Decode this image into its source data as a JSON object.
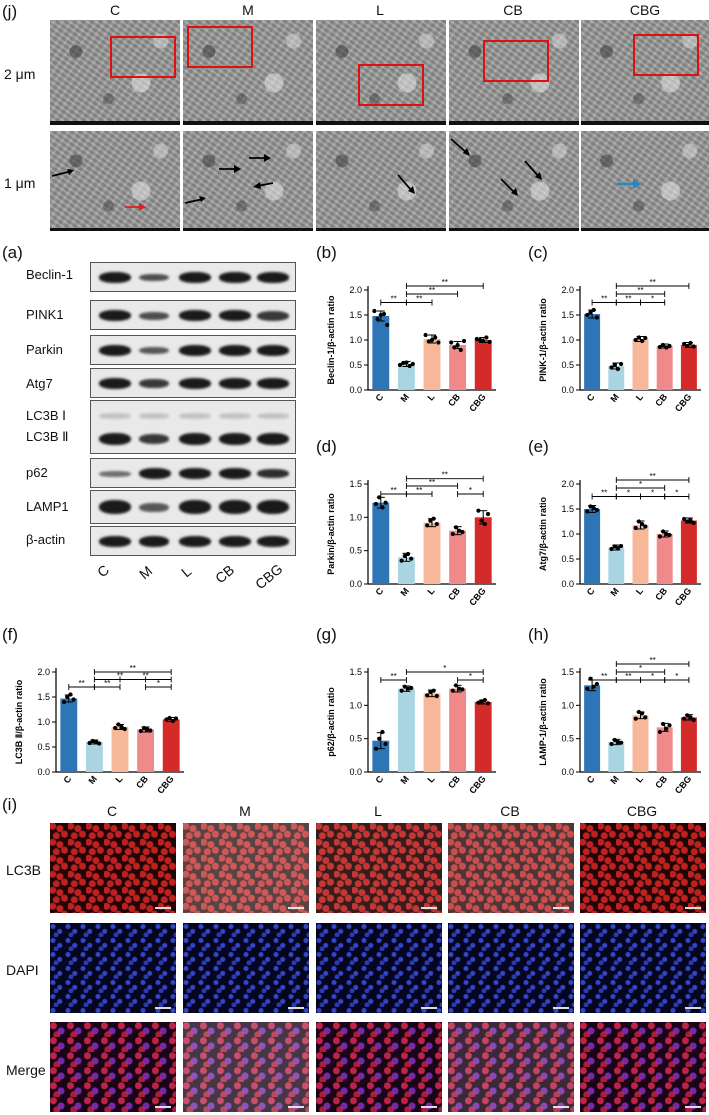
{
  "panels": {
    "j": "(j)",
    "a": "(a)",
    "b": "(b)",
    "c": "(c)",
    "d": "(d)",
    "e": "(e)",
    "f": "(f)",
    "g": "(g)",
    "h": "(h)",
    "i": "(i)"
  },
  "groups": [
    "C",
    "M",
    "L",
    "CB",
    "CBG"
  ],
  "tem": {
    "row_labels": [
      "2 μm",
      "1 μm"
    ]
  },
  "western": {
    "rows": [
      "Beclin-1",
      "PINK1",
      "Parkin",
      "Atg7",
      "LC3B Ⅰ",
      "LC3B Ⅱ",
      "p62",
      "LAMP1",
      "β-actin"
    ],
    "lane_labels": [
      "C",
      "M",
      "L",
      "CB",
      "CBG"
    ]
  },
  "fluor": {
    "col_labels": [
      "C",
      "M",
      "L",
      "CB",
      "CBG"
    ],
    "row_labels": [
      "LC3B",
      "DAPI",
      "Merge"
    ]
  },
  "colors": {
    "C": "#2e75b6",
    "M": "#a9d5e3",
    "L": "#f6b898",
    "CB": "#f08a8a",
    "CBG": "#d42a2a"
  },
  "chart_data": [
    {
      "type": "bar",
      "panel": "(b)",
      "ylabel": "Beclin-1/β-actin ratio",
      "categories": [
        "C",
        "M",
        "L",
        "CB",
        "CBG"
      ],
      "values": [
        1.48,
        0.52,
        1.02,
        0.9,
        1.0
      ],
      "errors": [
        0.1,
        0.05,
        0.08,
        0.07,
        0.05
      ],
      "ylim": [
        0,
        2.0
      ],
      "yticks": [
        "0.0",
        "0.5",
        "1.0",
        "1.5",
        "2.0"
      ],
      "points": [
        [
          1.58,
          1.42,
          1.5,
          1.52,
          1.3
        ],
        [
          0.5,
          0.54,
          0.55,
          0.48,
          0.52
        ],
        [
          1.1,
          0.97,
          1.0,
          1.05,
          0.95
        ],
        [
          0.95,
          0.85,
          0.9,
          0.8,
          0.98
        ],
        [
          1.02,
          1.0,
          0.98,
          1.05,
          0.96
        ]
      ],
      "sig": [
        {
          "a": 0,
          "b": 1,
          "label": "**",
          "y": 1.75
        },
        {
          "a": 1,
          "b": 2,
          "label": "**",
          "y": 1.75
        },
        {
          "a": 1,
          "b": 3,
          "label": "**",
          "y": 1.92
        },
        {
          "a": 1,
          "b": 4,
          "label": "**",
          "y": 2.08
        }
      ]
    },
    {
      "type": "bar",
      "panel": "(c)",
      "ylabel": "PINK-1/β-actin ratio",
      "categories": [
        "C",
        "M",
        "L",
        "CB",
        "CBG"
      ],
      "values": [
        1.52,
        0.48,
        1.02,
        0.88,
        0.9
      ],
      "errors": [
        0.08,
        0.06,
        0.05,
        0.04,
        0.05
      ],
      "ylim": [
        0,
        2.0
      ],
      "yticks": [
        "0.0",
        "0.5",
        "1.0",
        "1.5",
        "2.0"
      ],
      "points": [
        [
          1.5,
          1.55,
          1.6,
          1.45
        ],
        [
          0.45,
          0.5,
          0.42,
          0.52
        ],
        [
          1.0,
          1.05,
          0.98,
          1.04
        ],
        [
          0.86,
          0.9,
          0.85,
          0.88
        ],
        [
          0.92,
          0.88,
          0.94,
          0.87
        ]
      ],
      "sig": [
        {
          "a": 0,
          "b": 1,
          "label": "**",
          "y": 1.75
        },
        {
          "a": 1,
          "b": 2,
          "label": "**",
          "y": 1.75
        },
        {
          "a": 2,
          "b": 3,
          "label": "*",
          "y": 1.75
        },
        {
          "a": 1,
          "b": 3,
          "label": "**",
          "y": 1.92
        },
        {
          "a": 1,
          "b": 4,
          "label": "**",
          "y": 2.08
        }
      ]
    },
    {
      "type": "bar",
      "panel": "(d)",
      "ylabel": "Parkin/β-actin ratio",
      "categories": [
        "C",
        "M",
        "L",
        "CB",
        "CBG"
      ],
      "values": [
        1.22,
        0.4,
        0.92,
        0.8,
        1.0
      ],
      "errors": [
        0.08,
        0.06,
        0.06,
        0.06,
        0.1
      ],
      "ylim": [
        0,
        1.5
      ],
      "yticks": [
        "0.0",
        "0.5",
        "1.0",
        "1.5"
      ],
      "points": [
        [
          1.2,
          1.3,
          1.15,
          1.22
        ],
        [
          0.35,
          0.42,
          0.45,
          0.38
        ],
        [
          0.88,
          0.95,
          0.98,
          0.9
        ],
        [
          0.75,
          0.85,
          0.8,
          0.78
        ],
        [
          1.1,
          0.95,
          0.9,
          1.05
        ]
      ],
      "sig": [
        {
          "a": 0,
          "b": 1,
          "label": "**",
          "y": 1.35
        },
        {
          "a": 1,
          "b": 2,
          "label": "**",
          "y": 1.35
        },
        {
          "a": 3,
          "b": 4,
          "label": "*",
          "y": 1.35
        },
        {
          "a": 1,
          "b": 3,
          "label": "**",
          "y": 1.47
        },
        {
          "a": 1,
          "b": 4,
          "label": "**",
          "y": 1.58
        }
      ]
    },
    {
      "type": "bar",
      "panel": "(e)",
      "ylabel": "Atg7/β-actin ratio",
      "categories": [
        "C",
        "M",
        "L",
        "CB",
        "CBG"
      ],
      "values": [
        1.5,
        0.73,
        1.18,
        1.0,
        1.27
      ],
      "errors": [
        0.07,
        0.05,
        0.08,
        0.06,
        0.05
      ],
      "ylim": [
        0,
        2.0
      ],
      "yticks": [
        "0.0",
        "0.5",
        "1.0",
        "1.5",
        "2.0"
      ],
      "points": [
        [
          1.45,
          1.55,
          1.52,
          1.48
        ],
        [
          0.7,
          0.75,
          0.72,
          0.76
        ],
        [
          1.12,
          1.25,
          1.2,
          1.15
        ],
        [
          0.95,
          1.05,
          1.0,
          0.98
        ],
        [
          1.3,
          1.25,
          1.27,
          1.22
        ]
      ],
      "sig": [
        {
          "a": 0,
          "b": 1,
          "label": "**",
          "y": 1.75
        },
        {
          "a": 1,
          "b": 2,
          "label": "*",
          "y": 1.75
        },
        {
          "a": 2,
          "b": 3,
          "label": "*",
          "y": 1.75
        },
        {
          "a": 3,
          "b": 4,
          "label": "*",
          "y": 1.75
        },
        {
          "a": 1,
          "b": 3,
          "label": "*",
          "y": 1.92
        },
        {
          "a": 1,
          "b": 4,
          "label": "**",
          "y": 2.08
        }
      ]
    },
    {
      "type": "bar",
      "panel": "(f)",
      "ylabel": "LC3B Ⅱ/β-actin ratio",
      "categories": [
        "C",
        "M",
        "L",
        "CB",
        "CBG"
      ],
      "values": [
        1.47,
        0.6,
        0.9,
        0.85,
        1.05
      ],
      "errors": [
        0.07,
        0.04,
        0.05,
        0.05,
        0.04
      ],
      "ylim": [
        0,
        2.0
      ],
      "yticks": [
        "0.0",
        "0.5",
        "1.0",
        "1.5",
        "2.0"
      ],
      "points": [
        [
          1.4,
          1.5,
          1.55,
          1.45
        ],
        [
          0.58,
          0.62,
          0.6,
          0.57
        ],
        [
          0.88,
          0.95,
          0.9,
          0.86
        ],
        [
          0.82,
          0.88,
          0.85,
          0.83
        ],
        [
          1.05,
          1.08,
          1.02,
          1.07
        ]
      ],
      "sig": [
        {
          "a": 0,
          "b": 1,
          "label": "**",
          "y": 1.7
        },
        {
          "a": 1,
          "b": 2,
          "label": "**",
          "y": 1.7
        },
        {
          "a": 3,
          "b": 4,
          "label": "*",
          "y": 1.7
        },
        {
          "a": 1,
          "b": 3,
          "label": "**",
          "y": 1.85
        },
        {
          "a": 2,
          "b": 4,
          "label": "**",
          "y": 1.85
        },
        {
          "a": 1,
          "b": 4,
          "label": "**",
          "y": 2.0
        }
      ]
    },
    {
      "type": "bar",
      "panel": "(g)",
      "ylabel": "p62/β-actin ratio",
      "categories": [
        "C",
        "M",
        "L",
        "CB",
        "CBG"
      ],
      "values": [
        0.47,
        1.25,
        1.18,
        1.25,
        1.05
      ],
      "errors": [
        0.12,
        0.04,
        0.05,
        0.05,
        0.03
      ],
      "ylim": [
        0,
        1.5
      ],
      "yticks": [
        "0.0",
        "0.5",
        "1.0",
        "1.5"
      ],
      "points": [
        [
          0.35,
          0.5,
          0.6,
          0.42
        ],
        [
          1.22,
          1.28,
          1.25,
          1.26
        ],
        [
          1.15,
          1.2,
          1.22,
          1.14
        ],
        [
          1.22,
          1.3,
          1.25,
          1.24
        ],
        [
          1.04,
          1.06,
          1.08,
          1.03
        ]
      ],
      "sig": [
        {
          "a": 0,
          "b": 1,
          "label": "**",
          "y": 1.38
        },
        {
          "a": 3,
          "b": 4,
          "label": "*",
          "y": 1.38
        },
        {
          "a": 1,
          "b": 4,
          "label": "*",
          "y": 1.5
        }
      ]
    },
    {
      "type": "bar",
      "panel": "(h)",
      "ylabel": "LAMP-1/β-actin ratio",
      "categories": [
        "C",
        "M",
        "L",
        "CB",
        "CBG"
      ],
      "values": [
        1.3,
        0.45,
        0.85,
        0.67,
        0.82
      ],
      "errors": [
        0.08,
        0.04,
        0.05,
        0.06,
        0.04
      ],
      "ylim": [
        0,
        1.5
      ],
      "yticks": [
        "0.0",
        "0.5",
        "1.0",
        "1.5"
      ],
      "points": [
        [
          1.25,
          1.4,
          1.28,
          1.32
        ],
        [
          0.42,
          0.48,
          0.45,
          0.44
        ],
        [
          0.8,
          0.9,
          0.88,
          0.82
        ],
        [
          0.6,
          0.72,
          0.65,
          0.7
        ],
        [
          0.8,
          0.85,
          0.82,
          0.78
        ]
      ],
      "sig": [
        {
          "a": 0,
          "b": 1,
          "label": "**",
          "y": 1.38
        },
        {
          "a": 1,
          "b": 2,
          "label": "**",
          "y": 1.38
        },
        {
          "a": 2,
          "b": 3,
          "label": "*",
          "y": 1.38
        },
        {
          "a": 3,
          "b": 4,
          "label": "*",
          "y": 1.38
        },
        {
          "a": 1,
          "b": 3,
          "label": "*",
          "y": 1.5
        },
        {
          "a": 1,
          "b": 4,
          "label": "**",
          "y": 1.62
        }
      ]
    }
  ]
}
